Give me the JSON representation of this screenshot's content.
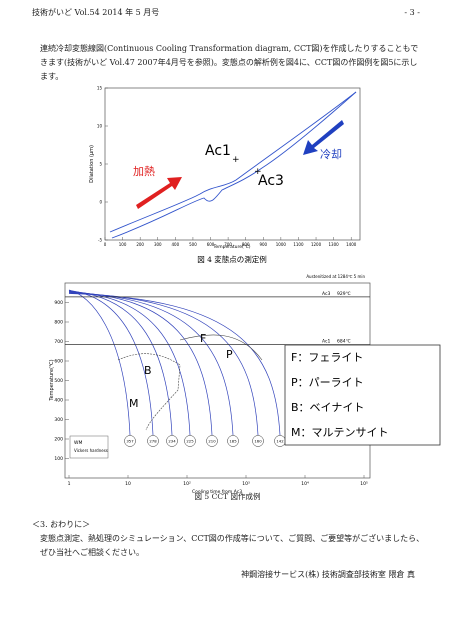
{
  "header": {
    "left": "技術がいど Vol.54 2014 年 5 月号",
    "right": "- 3 -"
  },
  "intro": "連続冷却変態線図(Continuous Cooling Transformation diagram, CCT図)を作成したりすることもできます(技術がいど Vol.47 2007年4月号を参照)。変態点の解析例を図4に、CCT図の作図例を図5に示します。",
  "figure4": {
    "caption": "図 4 変態点の測定例",
    "xlabel": "Temperature(℃)",
    "ylabel": "Dilatation (μm)",
    "xlim": [
      0,
      1450
    ],
    "xticks": [
      0,
      100,
      200,
      300,
      400,
      500,
      600,
      700,
      800,
      900,
      1000,
      1100,
      1200,
      1300,
      1400
    ],
    "ylim": [
      -5,
      15
    ],
    "yticks": [
      -5,
      0,
      5,
      10,
      15
    ],
    "annotations": {
      "ac1": "Ac1",
      "ac3": "Ac3",
      "heating": "加熱",
      "cooling": "冷却"
    }
  },
  "figure5": {
    "caption": "図 5 CCT 図作成例",
    "xlabel": "Cooling time from Ac3",
    "ylabel": "Temperature(℃)",
    "note": "Austenitized at 1284℃ 5 min",
    "xlim": [
      1,
      100000
    ],
    "xticks": [
      1,
      10,
      {
        "value": 100,
        "label": "10²"
      },
      {
        "value": 1000,
        "label": "10³"
      },
      {
        "value": 10000,
        "label": "10⁴"
      },
      {
        "value": 100000,
        "label": "10⁵"
      }
    ],
    "ylim": [
      0,
      1000
    ],
    "yticks": [
      100,
      200,
      300,
      400,
      500,
      600,
      700,
      800,
      900
    ],
    "ac3": {
      "label": "Ac3",
      "value": 929,
      "value_label": "929℃"
    },
    "ac1": {
      "label": "Ac1",
      "value": 684,
      "value_label": "684℃"
    },
    "regions": [
      "F",
      "P",
      "B",
      "M"
    ],
    "hardness_key": {
      "code": "WM",
      "text": "Vickers hardness"
    },
    "hardness": [
      357,
      278,
      234,
      225,
      210,
      185,
      160,
      142
    ],
    "legend": [
      "F：フェライト",
      "P：パーライト",
      "B：ベイナイト",
      "M：マルテンサイト"
    ]
  },
  "section": {
    "title": "＜3. おわりに＞",
    "body": "変態点測定、熱処理のシミュレーション、CCT図の作成等について、ご質問、ご要望等がございましたら、ぜひ当社へご相談ください。"
  },
  "signature": "神鋼溶接サービス(株) 技術調査部技術室 隈倉 真"
}
